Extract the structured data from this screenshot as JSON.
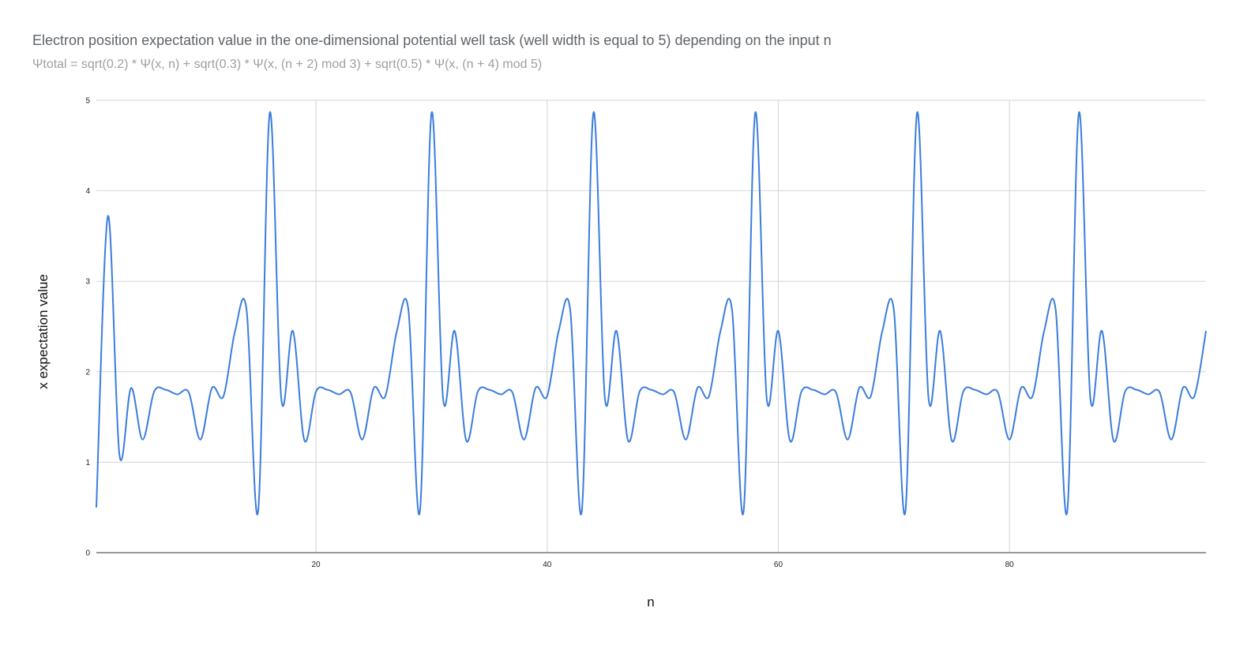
{
  "chart_data": {
    "type": "line",
    "title": "Electron position expectation value in the one-dimensional potential well task (well width is equal to 5) depending on the input n",
    "subtitle": "Ψtotal = sqrt(0.2) * Ψ(x, n) + sqrt(0.3) * Ψ(x, (n + 2) mod 3) + sqrt(0.5) * Ψ(x, (n + 4) mod 5)",
    "xlabel": "n",
    "ylabel": "x expectation value",
    "xlim": [
      1,
      97
    ],
    "ylim": [
      0,
      5
    ],
    "xticks": [
      "20",
      "40",
      "60",
      "80"
    ],
    "xtick_values": [
      20,
      40,
      60,
      80
    ],
    "yticks": [
      "0",
      "1",
      "2",
      "3",
      "4",
      "5"
    ],
    "ytick_values": [
      0,
      1,
      2,
      3,
      4,
      5
    ],
    "grid": true,
    "line_color": "#3b7ddd",
    "series": [
      {
        "x": [
          1,
          2,
          3,
          4,
          5,
          6,
          7,
          8,
          9,
          10,
          11,
          12,
          13,
          14,
          15,
          16,
          17,
          18,
          19,
          20,
          21,
          22,
          23,
          24,
          25,
          26,
          27,
          28,
          29,
          30,
          31,
          32,
          33,
          34,
          35,
          36,
          37,
          38,
          39,
          40,
          41,
          42,
          43,
          44,
          45,
          46,
          47,
          48,
          49,
          50,
          51,
          52,
          53,
          54,
          55,
          56,
          57,
          58,
          59,
          60,
          61,
          62,
          63,
          64,
          65,
          66,
          67,
          68,
          69,
          70,
          71,
          72,
          73,
          74,
          75,
          76,
          77,
          78,
          79,
          80,
          81,
          82,
          83,
          84,
          85,
          86,
          87,
          88,
          89,
          90,
          91,
          92,
          93,
          94,
          95,
          96,
          97
        ],
        "values": [
          0.5,
          3.72,
          1.08,
          1.82,
          1.25,
          1.78,
          1.8,
          1.75,
          1.77,
          1.25,
          1.82,
          1.73,
          2.45,
          2.68,
          0.46,
          4.86,
          1.7,
          2.45,
          1.24,
          1.78,
          1.8,
          1.75,
          1.77,
          1.25,
          1.82,
          1.73,
          2.45,
          2.68,
          0.46,
          4.86,
          1.7,
          2.45,
          1.24,
          1.78,
          1.8,
          1.75,
          1.77,
          1.25,
          1.82,
          1.73,
          2.45,
          2.68,
          0.46,
          4.86,
          1.7,
          2.45,
          1.24,
          1.78,
          1.8,
          1.75,
          1.77,
          1.25,
          1.82,
          1.73,
          2.45,
          2.68,
          0.46,
          4.86,
          1.7,
          2.45,
          1.24,
          1.78,
          1.8,
          1.75,
          1.77,
          1.25,
          1.82,
          1.73,
          2.45,
          2.68,
          0.46,
          4.86,
          1.7,
          2.45,
          1.24,
          1.78,
          1.8,
          1.75,
          1.77,
          1.25,
          1.82,
          1.73,
          2.45,
          2.68,
          0.46,
          4.86,
          1.7,
          2.45,
          1.24,
          1.78,
          1.8,
          1.75,
          1.77,
          1.25,
          1.82,
          1.73,
          2.45
        ]
      }
    ]
  }
}
